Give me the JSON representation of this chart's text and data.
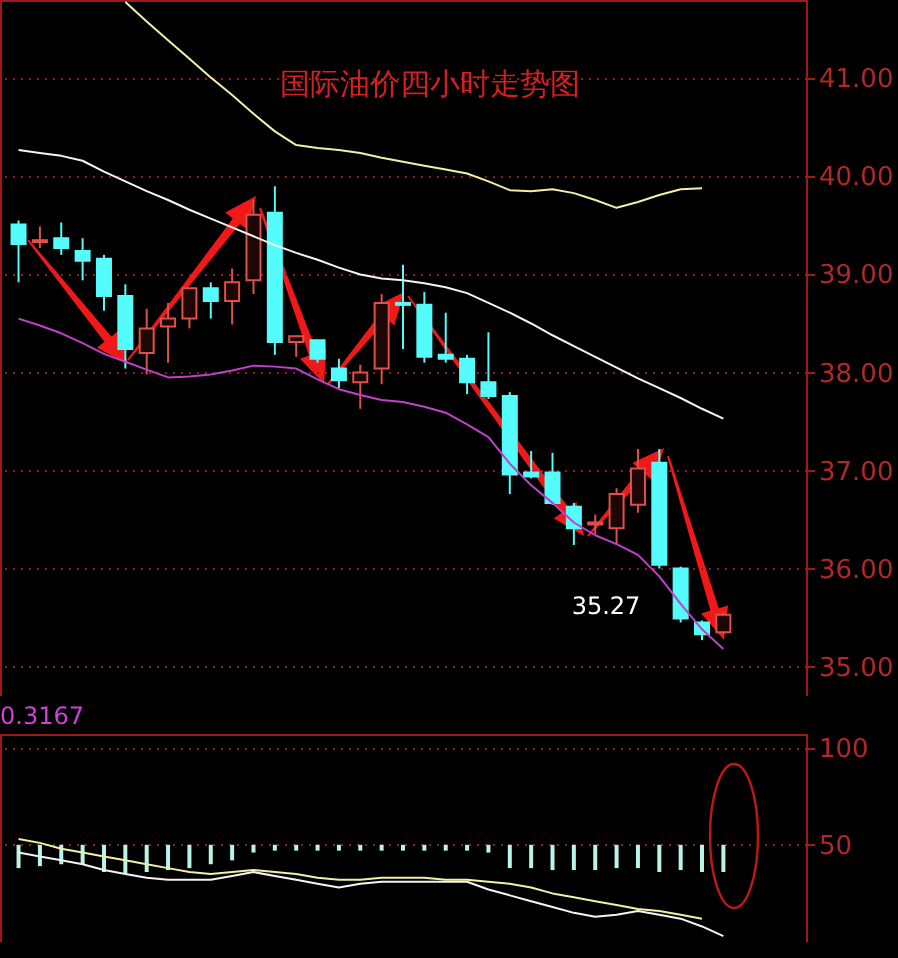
{
  "chart_data": [
    {
      "type": "candlestick",
      "title": "国际油价四小时走势图",
      "categories": [
        null,
        null,
        null,
        null,
        null,
        null,
        null,
        null,
        null,
        null,
        null,
        null,
        null,
        null,
        null,
        null,
        null,
        null,
        null,
        null,
        null,
        null,
        null,
        null,
        null,
        null,
        null,
        null,
        null,
        null,
        null,
        null,
        null,
        null
      ],
      "ohlc": [
        [
          39.51,
          39.55,
          38.92,
          39.31
        ],
        [
          39.33,
          39.49,
          39.27,
          39.35
        ],
        [
          39.37,
          39.53,
          39.2,
          39.27
        ],
        [
          39.24,
          39.37,
          38.94,
          39.14
        ],
        [
          39.16,
          39.2,
          38.63,
          38.78
        ],
        [
          38.78,
          38.9,
          38.04,
          38.24
        ],
        [
          38.2,
          38.65,
          37.98,
          38.45
        ],
        [
          38.47,
          38.71,
          38.1,
          38.55
        ],
        [
          38.55,
          38.86,
          38.45,
          38.86
        ],
        [
          38.86,
          38.92,
          38.55,
          38.73
        ],
        [
          38.73,
          39.06,
          38.49,
          38.92
        ],
        [
          38.94,
          39.76,
          38.8,
          39.61
        ],
        [
          39.63,
          39.9,
          38.18,
          38.31
        ],
        [
          38.31,
          38.37,
          38.16,
          38.37
        ],
        [
          38.33,
          38.33,
          38.1,
          38.14
        ],
        [
          38.04,
          38.14,
          37.84,
          37.92
        ],
        [
          37.9,
          38.08,
          37.63,
          38.0
        ],
        [
          38.04,
          38.8,
          37.88,
          38.71
        ],
        [
          38.71,
          39.1,
          38.24,
          38.69
        ],
        [
          38.69,
          38.82,
          38.1,
          38.16
        ],
        [
          38.18,
          38.61,
          38.1,
          38.14
        ],
        [
          38.14,
          38.18,
          37.78,
          37.9
        ],
        [
          37.9,
          38.41,
          37.73,
          37.76
        ],
        [
          37.76,
          37.8,
          36.76,
          36.96
        ],
        [
          36.98,
          37.2,
          36.92,
          36.94
        ],
        [
          36.98,
          37.18,
          36.65,
          36.67
        ],
        [
          36.63,
          36.67,
          36.24,
          36.41
        ],
        [
          36.45,
          36.55,
          36.35,
          36.47
        ],
        [
          36.41,
          36.82,
          36.24,
          36.76
        ],
        [
          36.65,
          37.22,
          36.57,
          37.02
        ],
        [
          37.08,
          37.22,
          36.0,
          36.04
        ],
        [
          36.0,
          36.02,
          35.45,
          35.49
        ],
        [
          35.45,
          35.47,
          35.27,
          35.33
        ],
        [
          35.35,
          35.55,
          35.33,
          35.53
        ]
      ],
      "colors": [
        "#54fcfc",
        "#e0504a",
        "#54fcfc",
        "#54fcfc",
        "#54fcfc",
        "#54fcfc",
        "#e0504a",
        "#e0504a",
        "#e0504a",
        "#54fcfc",
        "#e0504a",
        "#e0504a",
        "#54fcfc",
        "#e0504a",
        "#54fcfc",
        "#54fcfc",
        "#e0504a",
        "#e0504a",
        "#54fcfc",
        "#54fcfc",
        "#54fcfc",
        "#54fcfc",
        "#54fcfc",
        "#54fcfc",
        "#54fcfc",
        "#54fcfc",
        "#54fcfc",
        "#e0504a",
        "#e0504a",
        "#e0504a",
        "#54fcfc",
        "#54fcfc",
        "#54fcfc",
        "#e0504a"
      ],
      "series": [
        {
          "type": "line",
          "color": "#f4f4f4",
          "values": [
            40.27,
            40.24,
            40.21,
            40.16,
            40.05,
            39.95,
            39.85,
            39.76,
            39.66,
            39.57,
            39.48,
            39.39,
            39.3,
            39.22,
            39.15,
            39.07,
            39.0,
            38.96,
            38.94,
            38.91,
            38.87,
            38.81,
            38.71,
            38.61,
            38.5,
            38.38,
            38.27,
            38.16,
            38.05,
            37.94,
            37.84,
            37.74,
            37.63,
            37.53
          ]
        },
        {
          "type": "line",
          "color": "#f0f0a8",
          "values": [
            null,
            null,
            null,
            null,
            null,
            41.78,
            41.58,
            41.39,
            41.2,
            41.01,
            40.83,
            40.64,
            40.46,
            40.32,
            40.29,
            40.27,
            40.24,
            40.19,
            40.15,
            40.11,
            40.07,
            40.03,
            39.95,
            39.86,
            39.85,
            39.87,
            39.83,
            39.76,
            39.68,
            39.74,
            39.81,
            39.87,
            39.88,
            null
          ]
        },
        {
          "type": "line",
          "color": "#c040c8",
          "values": [
            38.55,
            38.48,
            38.4,
            38.3,
            38.19,
            38.11,
            38.03,
            37.95,
            37.96,
            37.98,
            38.02,
            38.07,
            38.06,
            38.04,
            37.93,
            37.83,
            37.77,
            37.72,
            37.7,
            37.65,
            37.59,
            37.47,
            37.34,
            37.07,
            36.85,
            36.67,
            36.47,
            36.34,
            36.25,
            36.14,
            35.92,
            35.64,
            35.38,
            35.18
          ]
        }
      ],
      "annotations": [
        "35.27"
      ],
      "ylim": [
        34.7,
        41.8
      ],
      "yticks": [
        {
          "value": 35,
          "label": "35.00"
        },
        {
          "value": 36,
          "label": "36.00"
        },
        {
          "value": 37,
          "label": "37.00"
        },
        {
          "value": 38,
          "label": "38.00"
        },
        {
          "value": 39,
          "label": "39.00"
        },
        {
          "value": 40,
          "label": "40.00"
        },
        {
          "value": 41,
          "label": "41.00"
        }
      ],
      "grid": "y",
      "tick_labels": "y"
    },
    {
      "type": "bar",
      "categories": [
        null,
        null,
        null,
        null,
        null,
        null,
        null,
        null,
        null,
        null,
        null,
        null,
        null,
        null,
        null,
        null,
        null,
        null,
        null,
        null,
        null,
        null,
        null,
        null,
        null,
        null,
        null,
        null,
        null,
        null,
        null,
        null,
        null,
        null
      ],
      "base": [
        38,
        39,
        40,
        40,
        36,
        35,
        36,
        37,
        38,
        40,
        42,
        46,
        47,
        47,
        47,
        47,
        47,
        47,
        47,
        47,
        47,
        47,
        46,
        38,
        38,
        37,
        37,
        37,
        38,
        38,
        36,
        37,
        36,
        36
      ],
      "color": "#b8f4e8",
      "values": [
        12,
        11,
        10,
        10,
        14,
        15,
        14,
        13,
        12,
        10,
        8,
        4,
        3,
        3,
        3,
        3,
        3,
        3,
        3,
        3,
        3,
        3,
        4,
        12,
        12,
        13,
        13,
        13,
        12,
        12,
        14,
        13,
        14,
        14
      ],
      "series": [
        {
          "type": "line",
          "color": "#f4f4f4",
          "values": [
            46,
            44,
            42,
            40,
            37,
            35,
            33,
            32,
            32,
            32,
            34,
            36,
            34,
            32,
            30,
            28,
            30,
            31,
            31,
            31,
            31,
            31,
            27,
            24,
            21,
            18,
            15,
            13,
            14,
            16,
            14,
            12,
            8,
            3
          ]
        },
        {
          "type": "line",
          "color": "#f0f0a8",
          "values": [
            53,
            51,
            48,
            46,
            44,
            42,
            40,
            38,
            36,
            35,
            36,
            37,
            36,
            35,
            33,
            32,
            32,
            33,
            33,
            33,
            32,
            32,
            31,
            30,
            28,
            25,
            23,
            21,
            19,
            17,
            16,
            14,
            12,
            null
          ]
        }
      ],
      "annotations": [
        "0.3167"
      ],
      "ylim": [
        0,
        107
      ],
      "yticks": [
        50,
        100
      ],
      "grid": "y",
      "tick_labels": "y"
    }
  ]
}
